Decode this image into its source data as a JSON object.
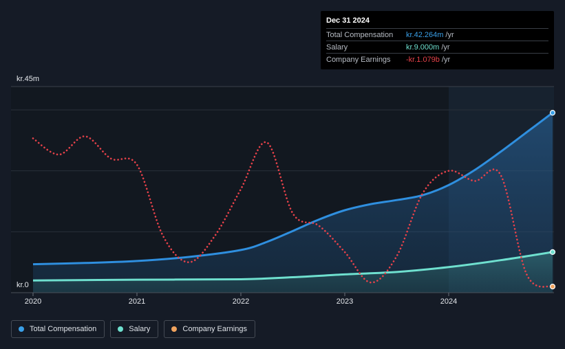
{
  "tooltip": {
    "date": "Dec 31 2024",
    "rows": [
      {
        "label": "Total Compensation",
        "value": "kr.42.264m",
        "unit": "/yr",
        "color": "#3aa0e8"
      },
      {
        "label": "Salary",
        "value": "kr.9.000m",
        "unit": "/yr",
        "color": "#6fe0cf"
      },
      {
        "label": "Company Earnings",
        "value": "-kr.1.079b",
        "unit": "/yr",
        "color": "#e8424a"
      }
    ]
  },
  "legend": [
    {
      "label": "Total Compensation",
      "color": "#3aa0e8"
    },
    {
      "label": "Salary",
      "color": "#6fe0cf"
    },
    {
      "label": "Company Earnings",
      "color": "#f0a35e"
    }
  ],
  "chart_data": {
    "type": "line",
    "y_top_label": "kr.45m",
    "y_zero_label": "kr.0",
    "ylim": [
      0,
      45
    ],
    "xlim": [
      2020.0,
      2025.0
    ],
    "x_ticks": [
      2020,
      2021,
      2022,
      2023,
      2024
    ],
    "x_tick_labels": [
      "2020",
      "2021",
      "2022",
      "2023",
      "2024"
    ],
    "highlight_start": 2024.0,
    "series": [
      {
        "name": "Total Compensation",
        "color": "#2f8fdf",
        "style": "solid",
        "fill": true,
        "x": [
          2020.0,
          2020.5,
          2021.0,
          2021.5,
          2022.0,
          2022.25,
          2022.5,
          2022.75,
          2023.0,
          2023.25,
          2023.5,
          2023.75,
          2024.0,
          2024.25,
          2024.5,
          2024.75,
          2025.0
        ],
        "y": [
          7.0,
          7.3,
          7.8,
          8.8,
          10.5,
          12.5,
          15.2,
          18.0,
          20.3,
          21.8,
          22.8,
          24.0,
          26.5,
          30.2,
          34.7,
          39.5,
          44.3
        ]
      },
      {
        "name": "Salary",
        "color": "#6fe0cf",
        "style": "solid",
        "fill": true,
        "x": [
          2020.0,
          2021.0,
          2022.0,
          2022.5,
          2023.0,
          2023.5,
          2024.0,
          2024.5,
          2025.0
        ],
        "y": [
          3.0,
          3.2,
          3.3,
          3.8,
          4.5,
          5.1,
          6.3,
          8.0,
          10.0
        ]
      },
      {
        "name": "Company Earnings",
        "color": "#e8424a",
        "style": "dotted",
        "fill": false,
        "x": [
          2020.0,
          2020.25,
          2020.5,
          2020.75,
          2021.0,
          2021.25,
          2021.5,
          2021.75,
          2022.0,
          2022.25,
          2022.5,
          2022.75,
          2023.0,
          2023.25,
          2023.5,
          2023.75,
          2024.0,
          2024.25,
          2024.5,
          2024.75,
          2025.0
        ],
        "y": [
          38.0,
          34.0,
          38.5,
          33.0,
          31.5,
          14.0,
          7.5,
          14.0,
          25.5,
          37.0,
          19.5,
          16.5,
          10.0,
          2.5,
          9.0,
          24.5,
          30.0,
          27.5,
          29.0,
          4.5,
          1.5
        ]
      }
    ]
  }
}
